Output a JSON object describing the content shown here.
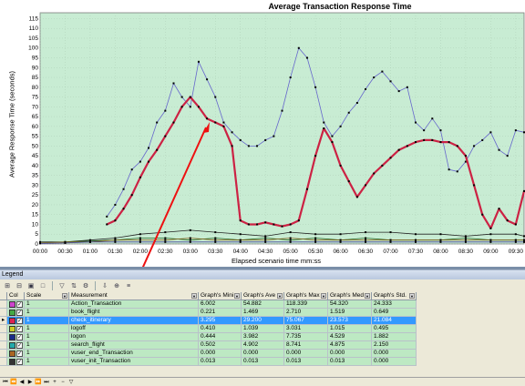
{
  "chart_data": {
    "type": "line",
    "title": "Average Transaction Response Time",
    "xlabel": "Elapsed scenario time mm:ss",
    "ylabel": "Average Response Time (seconds)",
    "xlim": [
      0,
      580
    ],
    "ylim": [
      0,
      118
    ],
    "x_ticks": [
      "00:00",
      "00:30",
      "01:00",
      "01:30",
      "02:00",
      "02:30",
      "03:00",
      "03:30",
      "04:00",
      "04:30",
      "05:00",
      "05:30",
      "06:00",
      "06:30",
      "07:00",
      "07:30",
      "08:00",
      "08:30",
      "09:00",
      "09:30"
    ],
    "y_ticks": [
      0,
      5,
      10,
      15,
      20,
      25,
      30,
      35,
      40,
      45,
      50,
      55,
      60,
      65,
      70,
      75,
      80,
      85,
      90,
      95,
      100,
      105,
      110,
      115
    ],
    "grid": true,
    "background": "#c8ecd3",
    "series": [
      {
        "name": "Action_Transaction",
        "color": "#6666cc",
        "width": 0.8,
        "x": [
          80,
          90,
          100,
          110,
          120,
          130,
          140,
          150,
          160,
          170,
          180,
          190,
          200,
          210,
          220,
          230,
          240,
          250,
          260,
          270,
          280,
          290,
          300,
          310,
          320,
          330,
          340,
          350,
          360,
          370,
          380,
          390,
          400,
          410,
          420,
          430,
          440,
          450,
          460,
          470,
          480,
          490,
          500,
          510,
          520,
          530,
          540,
          550,
          560,
          570,
          580
        ],
        "y": [
          14,
          20,
          28,
          38,
          42,
          49,
          62,
          68,
          82,
          75,
          70,
          93,
          84,
          75,
          62,
          57,
          53,
          50,
          50,
          53,
          55,
          68,
          85,
          100,
          95,
          80,
          62,
          55,
          60,
          67,
          72,
          79,
          85,
          88,
          83,
          78,
          80,
          62,
          58,
          64,
          58,
          38,
          37,
          42,
          50,
          53,
          57,
          48,
          45,
          58,
          57
        ]
      },
      {
        "name": "check_itinerary",
        "color": "#cc2244",
        "width": 2.2,
        "x": [
          80,
          90,
          100,
          110,
          120,
          130,
          140,
          150,
          160,
          170,
          180,
          190,
          200,
          210,
          220,
          230,
          240,
          250,
          260,
          270,
          280,
          290,
          300,
          310,
          320,
          330,
          340,
          350,
          360,
          370,
          380,
          390,
          400,
          410,
          420,
          430,
          440,
          450,
          460,
          470,
          480,
          490,
          500,
          510,
          520,
          530,
          540,
          550,
          560,
          570,
          580
        ],
        "y": [
          10,
          12,
          18,
          25,
          34,
          42,
          48,
          55,
          62,
          70,
          75,
          70,
          64,
          62,
          60,
          50,
          12,
          10,
          10,
          11,
          10,
          9,
          10,
          12,
          28,
          45,
          59,
          52,
          40,
          32,
          24,
          30,
          36,
          40,
          44,
          48,
          50,
          52,
          53,
          53,
          52,
          52,
          50,
          45,
          30,
          15,
          8,
          18,
          12,
          10,
          27
        ]
      },
      {
        "name": "logon",
        "color": "#222222",
        "width": 0.8,
        "x": [
          0,
          30,
          60,
          90,
          120,
          150,
          180,
          210,
          240,
          270,
          300,
          330,
          360,
          390,
          420,
          450,
          480,
          510,
          540,
          570,
          580
        ],
        "y": [
          1,
          1,
          2,
          3,
          5,
          6,
          7,
          6,
          5,
          4,
          6,
          5,
          5,
          6,
          6,
          5,
          5,
          4,
          5,
          5,
          4
        ]
      },
      {
        "name": "book_flight",
        "color": "#226622",
        "width": 0.8,
        "x": [
          0,
          30,
          60,
          90,
          120,
          150,
          180,
          210,
          240,
          270,
          300,
          330,
          360,
          390,
          420,
          450,
          480,
          510,
          540,
          570,
          580
        ],
        "y": [
          0.5,
          1,
          1.5,
          2,
          3,
          3,
          2,
          3,
          2,
          3,
          2,
          3,
          2,
          3,
          2,
          2,
          2,
          3,
          2,
          2,
          2
        ]
      },
      {
        "name": "search_flight",
        "color": "#886622",
        "width": 0.8,
        "x": [
          0,
          30,
          60,
          90,
          120,
          150,
          180,
          210,
          240,
          270,
          300,
          330,
          360,
          390,
          420,
          450,
          480,
          510,
          540,
          570,
          580
        ],
        "y": [
          0.5,
          1,
          1,
          2,
          2,
          2,
          3,
          2,
          2,
          2,
          3,
          2,
          2,
          2,
          2,
          2,
          2,
          2,
          2,
          2,
          2
        ]
      },
      {
        "name": "logoff",
        "color": "#444499",
        "width": 0.8,
        "x": [
          0,
          30,
          60,
          90,
          120,
          150,
          180,
          210,
          240,
          270,
          300,
          330,
          360,
          390,
          420,
          450,
          480,
          510,
          540,
          570,
          580
        ],
        "y": [
          0.3,
          0.5,
          1,
          1,
          1,
          1,
          1,
          1,
          1,
          1,
          1,
          1,
          1,
          1,
          1,
          1,
          1,
          1,
          1,
          1,
          1
        ]
      }
    ]
  },
  "annotation": {
    "color": "#ee1111"
  },
  "legend": {
    "title": "Legend",
    "toolbar_icons": [
      "select-all-icon",
      "deselect-icon",
      "show-icon",
      "hide-icon",
      "filter-icon",
      "sort-icon",
      "configure-icon",
      "export-icon",
      "zoom-icon",
      "measure-icon"
    ],
    "headers": {
      "col": "Col",
      "scale": "Scale",
      "measurement": "Measurement",
      "min": "Graph's Mini",
      "avg": "Graph's Ave",
      "max": "Graph's Max",
      "median": "Graph's Med",
      "std": "Graph's Std."
    },
    "rows": [
      {
        "color": "#cc44cc",
        "scale": "1",
        "measurement": "Action_Transaction",
        "min": "6.002",
        "avg": "54.882",
        "max": "118.339",
        "median": "54.320",
        "std": "24.333"
      },
      {
        "color": "#44aa44",
        "scale": "1",
        "measurement": "book_flight",
        "min": "0.221",
        "avg": "1.469",
        "max": "2.710",
        "median": "1.519",
        "std": "0.649"
      },
      {
        "color": "#dd2255",
        "scale": "1",
        "measurement": "check_itinerary",
        "min": "3.295",
        "avg": "29.200",
        "max": "75.067",
        "median": "23.573",
        "std": "21.084",
        "selected": true
      },
      {
        "color": "#cccc22",
        "scale": "1",
        "measurement": "logoff",
        "min": "0.410",
        "avg": "1.039",
        "max": "3.031",
        "median": "1.015",
        "std": "0.495"
      },
      {
        "color": "#1a2a8a",
        "scale": "1",
        "measurement": "logon",
        "min": "0.444",
        "avg": "3.982",
        "max": "7.735",
        "median": "4.529",
        "std": "1.882"
      },
      {
        "color": "#22aaaa",
        "scale": "1",
        "measurement": "search_flight",
        "min": "0.502",
        "avg": "4.902",
        "max": "8.741",
        "median": "4.875",
        "std": "2.150"
      },
      {
        "color": "#aa6622",
        "scale": "1",
        "measurement": "vuser_end_Transaction",
        "min": "0.000",
        "avg": "0.000",
        "max": "0.000",
        "median": "0.000",
        "std": "0.000"
      },
      {
        "color": "#333333",
        "scale": "1",
        "measurement": "vuser_init_Transaction",
        "min": "0.013",
        "avg": "0.013",
        "max": "0.013",
        "median": "0.013",
        "std": "0.000"
      }
    ],
    "nav_icons": [
      "first-page-icon",
      "prev-page-icon",
      "prev-icon",
      "next-icon",
      "next-page-icon",
      "last-page-icon",
      "add-icon",
      "delete-icon",
      "filter-icon"
    ]
  }
}
